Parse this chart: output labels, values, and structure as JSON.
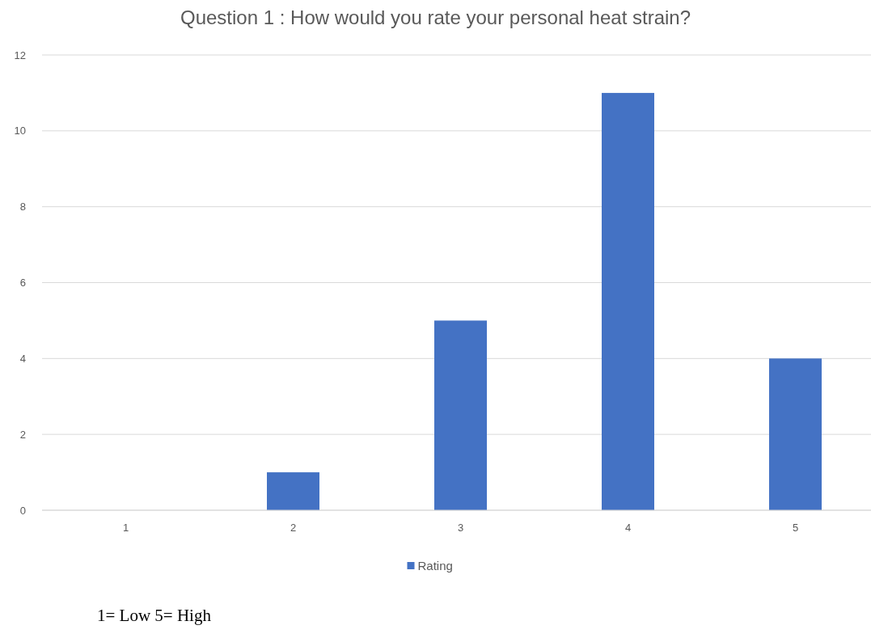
{
  "chart_data": {
    "type": "bar",
    "title": "Question 1 : How would you rate your personal heat strain?",
    "categories": [
      "1",
      "2",
      "3",
      "4",
      "5"
    ],
    "series": [
      {
        "name": "Rating",
        "color": "#4472c4",
        "values": [
          0,
          1,
          5,
          11,
          4
        ]
      }
    ],
    "ylim": [
      0,
      12
    ],
    "yticks": [
      0,
      2,
      4,
      6,
      8,
      10,
      12
    ],
    "grid": "y",
    "legend": "bottom",
    "annotations": [
      "1= Low 5= High"
    ]
  }
}
